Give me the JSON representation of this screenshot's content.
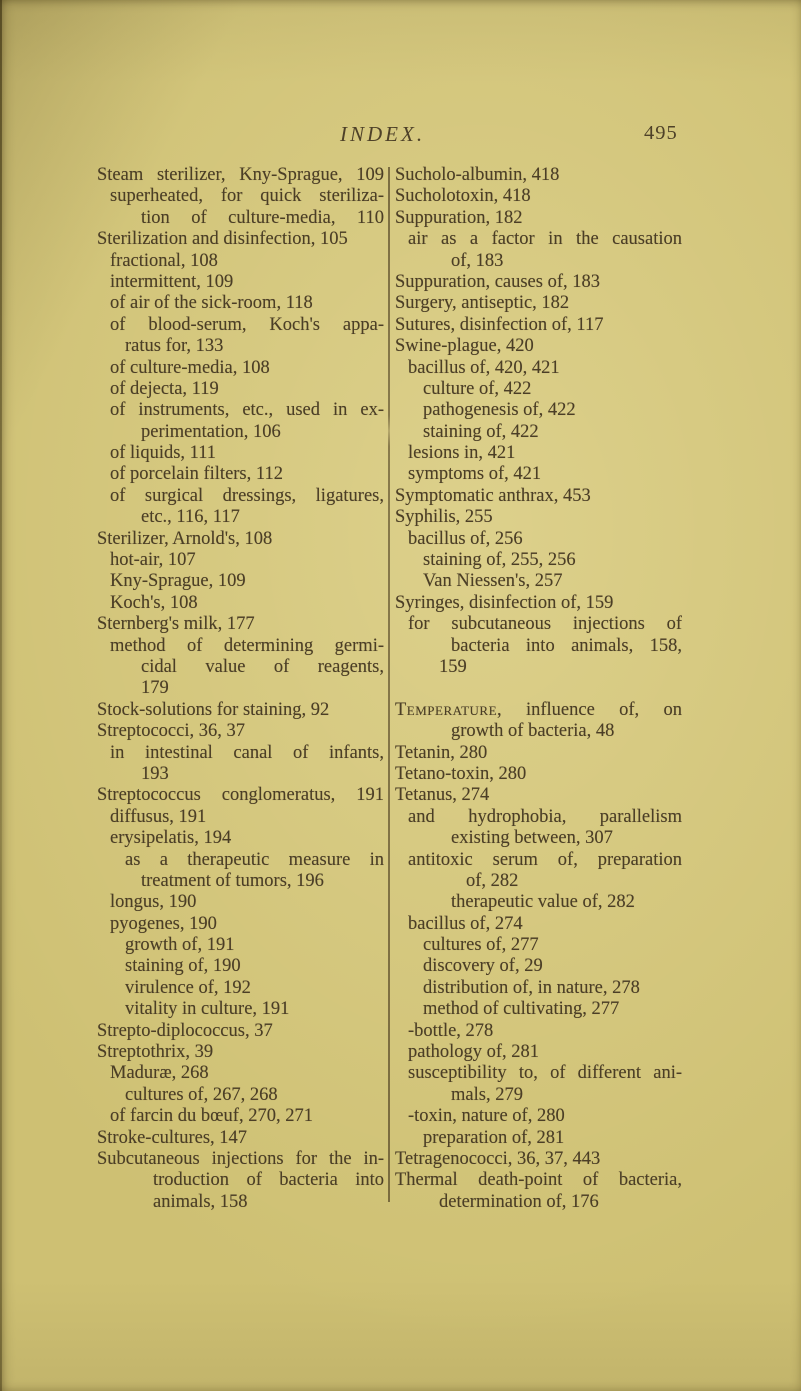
{
  "header": {
    "title": "INDEX.",
    "page_number": "495"
  },
  "index": {
    "left_column": [
      {
        "t": "Steam sterilizer, Kny-Sprague, 109",
        "i": 0,
        "j": true
      },
      {
        "t": "superheated, for quick steriliza-",
        "i": 1,
        "j": true
      },
      {
        "t": "tion of culture-media, 110",
        "i": 3,
        "j": true
      },
      {
        "t": "Sterilization and disinfection, 105",
        "i": 0
      },
      {
        "t": "fractional, 108",
        "i": 1
      },
      {
        "t": "intermittent, 109",
        "i": 1
      },
      {
        "t": "of air of the sick-room, 118",
        "i": 1
      },
      {
        "t": "of blood-serum, Koch's appa-",
        "i": 1,
        "j": true
      },
      {
        "t": "ratus for, 133",
        "i": 2
      },
      {
        "t": "of culture-media, 108",
        "i": 1
      },
      {
        "t": "of dejecta, 119",
        "i": 1
      },
      {
        "t": "of instruments, etc., used in ex-",
        "i": 1,
        "j": true
      },
      {
        "t": "perimentation, 106",
        "i": 3
      },
      {
        "t": "of liquids, 111",
        "i": 1
      },
      {
        "t": "of porcelain filters, 112",
        "i": 1
      },
      {
        "t": "of surgical dressings, ligatures,",
        "i": 1,
        "j": true
      },
      {
        "t": "etc., 116, 117",
        "i": 3
      },
      {
        "t": "Sterilizer, Arnold's, 108",
        "i": 0
      },
      {
        "t": "hot-air, 107",
        "i": 1
      },
      {
        "t": "Kny-Sprague, 109",
        "i": 1
      },
      {
        "t": "Koch's, 108",
        "i": 1
      },
      {
        "t": "Sternberg's milk, 177",
        "i": 0
      },
      {
        "t": "method of determining germi-",
        "i": 1,
        "j": true
      },
      {
        "t": "cidal value of reagents,",
        "i": 3,
        "j": true
      },
      {
        "t": "179",
        "i": 3
      },
      {
        "t": "Stock-solutions for staining, 92",
        "i": 0
      },
      {
        "t": "Streptococci, 36, 37",
        "i": 0
      },
      {
        "t": "in intestinal canal of infants,",
        "i": 1,
        "j": true
      },
      {
        "t": "193",
        "i": 3
      },
      {
        "t": "Streptococcus conglomeratus, 191",
        "i": 0,
        "j": true
      },
      {
        "t": "diffusus, 191",
        "i": 1
      },
      {
        "t": "erysipelatis, 194",
        "i": 1
      },
      {
        "t": "as a therapeutic measure in",
        "i": 2,
        "j": true
      },
      {
        "t": "treatment of tumors, 196",
        "i": 3
      },
      {
        "t": "longus, 190",
        "i": 1
      },
      {
        "t": "pyogenes, 190",
        "i": 1
      },
      {
        "t": "growth of, 191",
        "i": 2
      },
      {
        "t": "staining of, 190",
        "i": 2
      },
      {
        "t": "virulence of, 192",
        "i": 2
      },
      {
        "t": "vitality in culture, 191",
        "i": 2
      },
      {
        "t": "Strepto-diplococcus, 37",
        "i": 0
      },
      {
        "t": "Streptothrix, 39",
        "i": 0
      },
      {
        "t": "Maduræ, 268",
        "i": 1
      },
      {
        "t": "cultures of, 267, 268",
        "i": 2
      },
      {
        "t": "of farcin du bœuf, 270, 271",
        "i": 1
      },
      {
        "t": "Stroke-cultures, 147",
        "i": 0
      },
      {
        "t": "Subcutaneous injections for the in-",
        "i": 0,
        "j": true
      },
      {
        "t": "troduction of bacteria into",
        "i": 4,
        "j": true
      },
      {
        "t": "animals, 158",
        "i": 4
      }
    ],
    "right_column": [
      {
        "t": "Sucholo-albumin, 418",
        "i": 0
      },
      {
        "t": "Sucholotoxin, 418",
        "i": 0
      },
      {
        "t": "Suppuration, 182",
        "i": 0
      },
      {
        "t": "air as a factor in the causation",
        "i": 1,
        "j": true
      },
      {
        "t": "of, 183",
        "i": 4
      },
      {
        "t": "Suppuration, causes of, 183",
        "i": 0
      },
      {
        "t": "Surgery, antiseptic, 182",
        "i": 0
      },
      {
        "t": "Sutures, disinfection of, 117",
        "i": 0
      },
      {
        "t": "Swine-plague, 420",
        "i": 0
      },
      {
        "t": "bacillus of, 420, 421",
        "i": 1
      },
      {
        "t": "culture of, 422",
        "i": 2
      },
      {
        "t": "pathogenesis of, 422",
        "i": 2
      },
      {
        "t": "staining of, 422",
        "i": 2
      },
      {
        "t": "lesions in, 421",
        "i": 1
      },
      {
        "t": "symptoms of, 421",
        "i": 1
      },
      {
        "t": "Symptomatic anthrax, 453",
        "i": 0
      },
      {
        "t": "Syphilis, 255",
        "i": 0
      },
      {
        "t": "bacillus of, 256",
        "i": 1
      },
      {
        "t": "staining of, 255, 256",
        "i": 2
      },
      {
        "t": "Van Niessen's, 257",
        "i": 2
      },
      {
        "t": "Syringes, disinfection of, 159",
        "i": 0
      },
      {
        "t": "for subcutaneous injections of",
        "i": 1,
        "j": true
      },
      {
        "t": "bacteria into animals, 158,",
        "i": 4,
        "j": true
      },
      {
        "t": "159",
        "i": 3
      },
      {
        "blank": true
      },
      {
        "sc": "Temperature",
        "t": ", influence of, on",
        "i": 0,
        "j": true
      },
      {
        "t": "growth of bacteria, 48",
        "i": 4
      },
      {
        "t": "Tetanin, 280",
        "i": 0
      },
      {
        "t": "Tetano-toxin, 280",
        "i": 0
      },
      {
        "t": "Tetanus, 274",
        "i": 0
      },
      {
        "t": "and hydrophobia, parallelism",
        "i": 1,
        "j": true
      },
      {
        "t": "existing between, 307",
        "i": 4
      },
      {
        "t": "antitoxic serum of, preparation",
        "i": 1,
        "j": true
      },
      {
        "t": "of, 282",
        "i": 5
      },
      {
        "t": "therapeutic value of, 282",
        "i": 4
      },
      {
        "t": "bacillus of, 274",
        "i": 1
      },
      {
        "t": "cultures of, 277",
        "i": 2
      },
      {
        "t": "discovery of, 29",
        "i": 2
      },
      {
        "t": "distribution of, in nature, 278",
        "i": 2
      },
      {
        "t": "method of cultivating, 277",
        "i": 2
      },
      {
        "t": "-bottle, 278",
        "i": 1
      },
      {
        "t": "pathology of, 281",
        "i": 1
      },
      {
        "t": "susceptibility to, of different ani-",
        "i": 1,
        "j": true
      },
      {
        "t": "mals, 279",
        "i": 4
      },
      {
        "t": "-toxin, nature of, 280",
        "i": 1
      },
      {
        "t": "preparation of, 281",
        "i": 2
      },
      {
        "t": "Tetragenococci, 36, 37, 443",
        "i": 0
      },
      {
        "t": "Thermal death-point of bacteria,",
        "i": 0,
        "j": true
      },
      {
        "t": "determination of, 176",
        "i": 3
      }
    ]
  }
}
